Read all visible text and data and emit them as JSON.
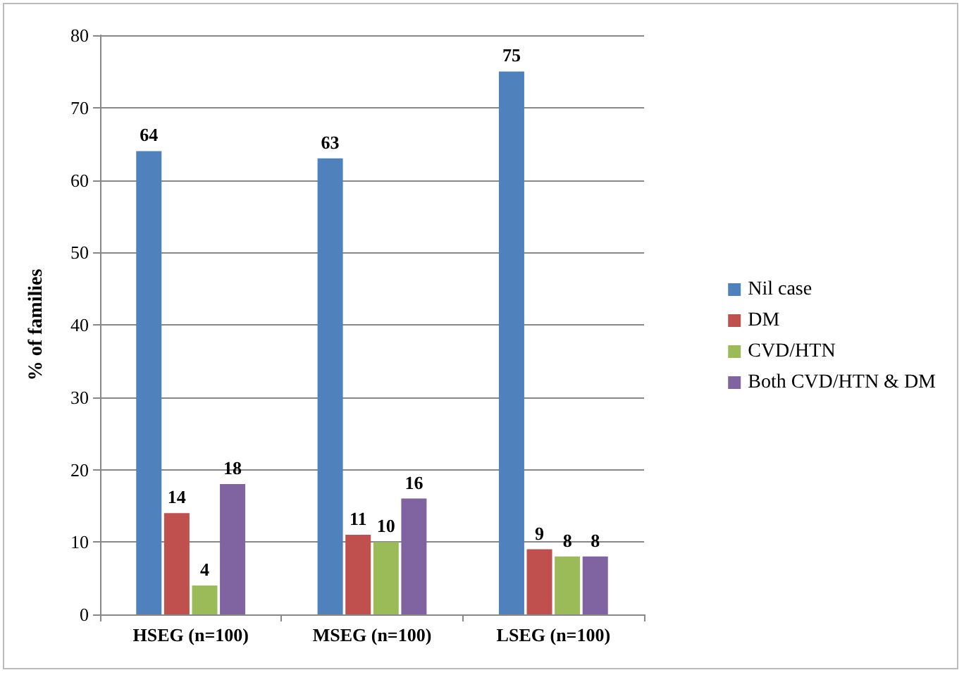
{
  "chart_data": {
    "type": "bar",
    "ylabel": "% of families",
    "categories": [
      "HSEG (n=100)",
      "MSEG (n=100)",
      "LSEG (n=100)"
    ],
    "series": [
      {
        "name": "Nil case",
        "color": "#4f81bd",
        "values": [
          64,
          63,
          75
        ]
      },
      {
        "name": "DM",
        "color": "#c0504d",
        "values": [
          14,
          11,
          9
        ]
      },
      {
        "name": "CVD/HTN",
        "color": "#9bbb59",
        "values": [
          4,
          10,
          8
        ]
      },
      {
        "name": "Both CVD/HTN & DM",
        "color": "#8064a2",
        "values": [
          18,
          16,
          8
        ]
      }
    ],
    "ylim": [
      0,
      80
    ],
    "yticks": [
      0,
      10,
      20,
      30,
      40,
      50,
      60,
      70,
      80
    ],
    "grid": "y",
    "legend": "right",
    "data_labels": true
  }
}
